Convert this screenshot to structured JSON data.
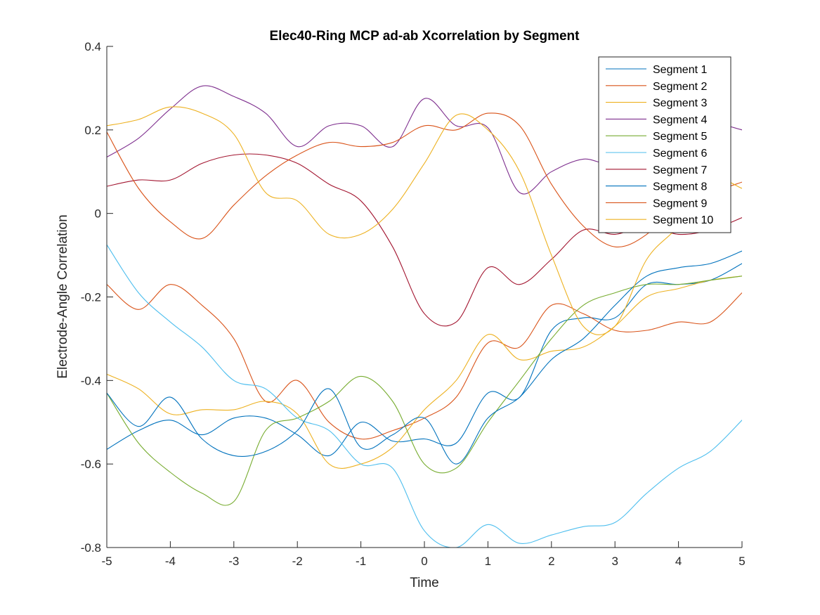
{
  "chart_data": {
    "type": "line",
    "title": "Elec40-Ring MCP ad-ab Xcorrelation by Segment",
    "xlabel": "Time",
    "ylabel": "Electrode-Angle Correlation",
    "xlim": [
      -5,
      5
    ],
    "ylim": [
      -0.8,
      0.4
    ],
    "xticks": [
      -5,
      -4,
      -3,
      -2,
      -1,
      0,
      1,
      2,
      3,
      4,
      5
    ],
    "yticks": [
      0.4,
      0.2,
      0,
      -0.2,
      -0.4,
      -0.6,
      -0.8
    ],
    "xtick_labels": [
      "-5",
      "-4",
      "-3",
      "-2",
      "-1",
      "0",
      "1",
      "2",
      "3",
      "4",
      "5"
    ],
    "ytick_labels": [
      "0.4",
      "0.2",
      "0",
      "-0.2",
      "-0.4",
      "-0.6",
      "-0.8"
    ],
    "grid": false,
    "legend_position": "top-right",
    "x": [
      -5.0,
      -4.5,
      -4.0,
      -3.5,
      -3.0,
      -2.5,
      -2.0,
      -1.5,
      -1.0,
      -0.5,
      0.0,
      0.5,
      1.0,
      1.5,
      2.0,
      2.5,
      3.0,
      3.5,
      4.0,
      4.5,
      5.0
    ],
    "series": [
      {
        "name": "Segment 1",
        "color": "#0072BD",
        "values": [
          -0.565,
          -0.52,
          -0.495,
          -0.53,
          -0.49,
          -0.49,
          -0.53,
          -0.58,
          -0.5,
          -0.545,
          -0.54,
          -0.55,
          -0.43,
          -0.44,
          -0.28,
          -0.25,
          -0.25,
          -0.17,
          -0.17,
          -0.16,
          -0.12
        ]
      },
      {
        "name": "Segment 2",
        "color": "#D95319",
        "values": [
          -0.17,
          -0.23,
          -0.17,
          -0.22,
          -0.3,
          -0.45,
          -0.4,
          -0.5,
          -0.54,
          -0.52,
          -0.49,
          -0.44,
          -0.31,
          -0.32,
          -0.22,
          -0.24,
          -0.28,
          -0.28,
          -0.26,
          -0.26,
          -0.19
        ]
      },
      {
        "name": "Segment 3",
        "color": "#EDB120",
        "values": [
          -0.385,
          -0.42,
          -0.48,
          -0.47,
          -0.47,
          -0.45,
          -0.48,
          -0.6,
          -0.6,
          -0.56,
          -0.47,
          -0.4,
          -0.29,
          -0.35,
          -0.33,
          -0.32,
          -0.27,
          -0.2,
          -0.18,
          -0.16,
          -0.15
        ]
      },
      {
        "name": "Segment 4",
        "color": "#7E2F8E",
        "values": [
          0.135,
          0.18,
          0.25,
          0.305,
          0.28,
          0.24,
          0.16,
          0.21,
          0.21,
          0.16,
          0.275,
          0.21,
          0.205,
          0.05,
          0.1,
          0.13,
          0.12,
          0.19,
          0.23,
          0.22,
          0.2
        ]
      },
      {
        "name": "Segment 5",
        "color": "#77AC30",
        "values": [
          -0.43,
          -0.55,
          -0.62,
          -0.67,
          -0.69,
          -0.52,
          -0.49,
          -0.45,
          -0.39,
          -0.45,
          -0.6,
          -0.61,
          -0.5,
          -0.4,
          -0.3,
          -0.22,
          -0.19,
          -0.17,
          -0.17,
          -0.16,
          -0.15
        ]
      },
      {
        "name": "Segment 6",
        "color": "#4DBEEE",
        "values": [
          -0.075,
          -0.19,
          -0.26,
          -0.32,
          -0.4,
          -0.42,
          -0.49,
          -0.52,
          -0.6,
          -0.61,
          -0.76,
          -0.8,
          -0.745,
          -0.79,
          -0.77,
          -0.75,
          -0.74,
          -0.67,
          -0.61,
          -0.57,
          -0.495
        ]
      },
      {
        "name": "Segment 7",
        "color": "#A2142F",
        "values": [
          0.065,
          0.08,
          0.08,
          0.12,
          0.14,
          0.14,
          0.12,
          0.07,
          0.03,
          -0.08,
          -0.24,
          -0.26,
          -0.13,
          -0.17,
          -0.11,
          -0.04,
          -0.05,
          -0.03,
          -0.05,
          -0.04,
          -0.01
        ]
      },
      {
        "name": "Segment 8",
        "color": "#0072BD",
        "values": [
          -0.43,
          -0.51,
          -0.44,
          -0.54,
          -0.58,
          -0.57,
          -0.52,
          -0.42,
          -0.56,
          -0.53,
          -0.49,
          -0.6,
          -0.49,
          -0.44,
          -0.35,
          -0.3,
          -0.22,
          -0.15,
          -0.13,
          -0.12,
          -0.09
        ]
      },
      {
        "name": "Segment 9",
        "color": "#D95319",
        "values": [
          0.195,
          0.06,
          -0.02,
          -0.06,
          0.02,
          0.09,
          0.14,
          0.17,
          0.16,
          0.17,
          0.21,
          0.2,
          0.24,
          0.21,
          0.07,
          -0.03,
          -0.08,
          -0.05,
          0.03,
          0.05,
          0.075
        ]
      },
      {
        "name": "Segment 10",
        "color": "#EDB120",
        "values": [
          0.21,
          0.225,
          0.255,
          0.24,
          0.19,
          0.05,
          0.03,
          -0.05,
          -0.05,
          0.01,
          0.12,
          0.235,
          0.2,
          0.1,
          -0.1,
          -0.27,
          -0.27,
          -0.11,
          -0.03,
          0.08,
          0.06
        ]
      }
    ]
  }
}
